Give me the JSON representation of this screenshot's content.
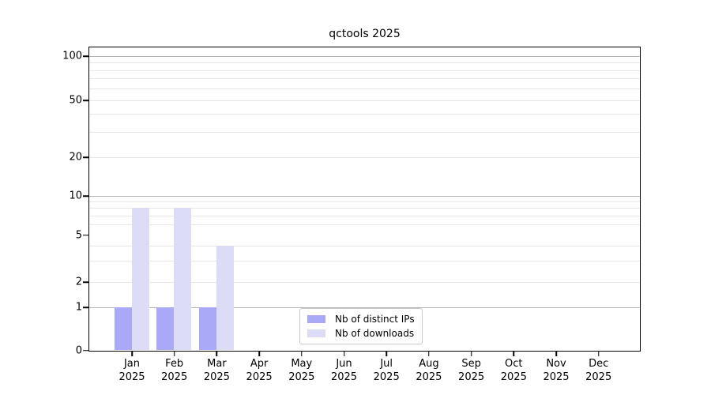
{
  "chart_data": {
    "type": "bar",
    "title": "qctools 2025",
    "categories": [
      "Jan 2025",
      "Feb 2025",
      "Mar 2025",
      "Apr 2025",
      "May 2025",
      "Jun 2025",
      "Jul 2025",
      "Aug 2025",
      "Sep 2025",
      "Oct 2025",
      "Nov 2025",
      "Dec 2025"
    ],
    "series": [
      {
        "name": "Nb of distinct IPs",
        "color": "#a9a9f8",
        "values": [
          1,
          1,
          1,
          0,
          0,
          0,
          0,
          0,
          0,
          0,
          0,
          0
        ]
      },
      {
        "name": "Nb of downloads",
        "color": "#dcdcf7",
        "values": [
          8,
          8,
          4,
          0,
          0,
          0,
          0,
          0,
          0,
          0,
          0,
          0
        ]
      }
    ],
    "y_ticks": [
      0,
      1,
      2,
      5,
      10,
      20,
      50,
      100
    ],
    "y_major_gridlines": [
      1,
      10,
      100
    ],
    "y_minor_gridlines": [
      2,
      3,
      4,
      6,
      7,
      8,
      9,
      20,
      30,
      40,
      50,
      60,
      70,
      80,
      90
    ],
    "ylim": [
      0,
      100
    ],
    "scale": "symlog",
    "grid": "horizontal",
    "legend_position": "lower center",
    "colors": {
      "major_grid": "#b3b3b3",
      "minor_grid": "#e8e8e8",
      "axis": "#000000",
      "text": "#000000",
      "background": "#ffffff"
    }
  }
}
